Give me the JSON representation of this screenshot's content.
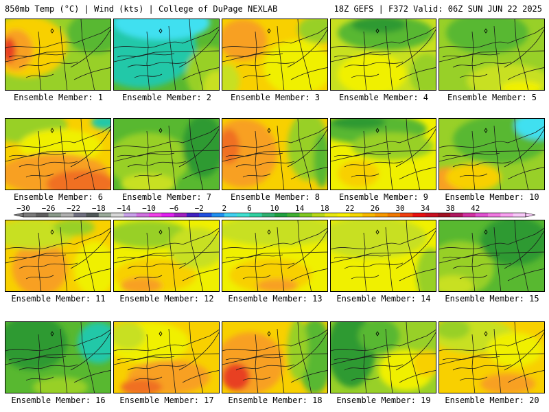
{
  "header": {
    "left": "850mb Temp (°C) | Wind (kts) | College of DuPage NEXLAB",
    "right": "18Z GEFS | F372 Valid: 06Z SUN JUN 22 2025"
  },
  "colors": {
    "cyan": "#40e0f0",
    "teal": "#20c8a8",
    "dark_green": "#2e9a30",
    "green": "#58b830",
    "light_green": "#98d028",
    "yellow_green": "#c8e020",
    "yellow": "#f0f000",
    "gold": "#f8d000",
    "orange": "#f8a020",
    "dark_orange": "#f07020",
    "red_orange": "#e84020"
  },
  "colorbar": {
    "labels": [
      "−30",
      "−26",
      "−22",
      "−18",
      "−14",
      "−10",
      "−6",
      "−2",
      "2",
      "6",
      "10",
      "14",
      "18",
      "22",
      "26",
      "30",
      "34",
      "38",
      "42"
    ],
    "colors": [
      "#7a7a7a",
      "#5e5e5e",
      "#8a9a8a",
      "#b0b0b0",
      "#707080",
      "#505858",
      "#9aaa9a",
      "#d8d8d8",
      "#c8a0e8",
      "#d070e0",
      "#f040e8",
      "#e020f0",
      "#a020c0",
      "#4020c0",
      "#2050e0",
      "#2090f0",
      "#40d0f0",
      "#40e0d0",
      "#30d0a0",
      "#30b070",
      "#20a040",
      "#40b030",
      "#80c820",
      "#b8d818",
      "#e8e810",
      "#f8f000",
      "#f8d800",
      "#f8b800",
      "#f89800",
      "#f07800",
      "#f04010",
      "#e81010",
      "#c81020",
      "#a01020",
      "#b01860",
      "#d030a0",
      "#e050d0",
      "#f078e0",
      "#f8a0f0",
      "#f8c8f8"
    ]
  },
  "panels": [
    {
      "label": "Ensemble Member: 1",
      "base": "#98d028",
      "blobs": [
        {
          "c": "#f8d000",
          "x": 30,
          "y": 40,
          "rx": 60,
          "ry": 45
        },
        {
          "c": "#f8a020",
          "x": 15,
          "y": 45,
          "rx": 25,
          "ry": 30
        },
        {
          "c": "#e84020",
          "x": 5,
          "y": 45,
          "rx": 10,
          "ry": 18
        },
        {
          "c": "#58b830",
          "x": 130,
          "y": 20,
          "rx": 40,
          "ry": 30
        }
      ]
    },
    {
      "label": "Ensemble Member: 2",
      "base": "#58b830",
      "blobs": [
        {
          "c": "#20c8a8",
          "x": 40,
          "y": 40,
          "rx": 80,
          "ry": 60
        },
        {
          "c": "#40e0f0",
          "x": 70,
          "y": 5,
          "rx": 70,
          "ry": 25
        },
        {
          "c": "#98d028",
          "x": 140,
          "y": 80,
          "rx": 35,
          "ry": 40
        },
        {
          "c": "#c8e020",
          "x": 150,
          "y": 100,
          "rx": 20,
          "ry": 25
        }
      ]
    },
    {
      "label": "Ensemble Member: 3",
      "base": "#f8d000",
      "blobs": [
        {
          "c": "#f0f000",
          "x": 110,
          "y": 70,
          "rx": 50,
          "ry": 40
        },
        {
          "c": "#f8a020",
          "x": 30,
          "y": 30,
          "rx": 35,
          "ry": 30
        },
        {
          "c": "#98d028",
          "x": 140,
          "y": 15,
          "rx": 30,
          "ry": 20
        },
        {
          "c": "#c8e020",
          "x": 5,
          "y": 90,
          "rx": 20,
          "ry": 25
        }
      ]
    },
    {
      "label": "Ensemble Member: 4",
      "base": "#c8e020",
      "blobs": [
        {
          "c": "#58b830",
          "x": 80,
          "y": 20,
          "rx": 70,
          "ry": 25
        },
        {
          "c": "#2e9a30",
          "x": 70,
          "y": 8,
          "rx": 40,
          "ry": 12
        },
        {
          "c": "#f0f000",
          "x": 60,
          "y": 80,
          "rx": 50,
          "ry": 30
        },
        {
          "c": "#98d028",
          "x": 140,
          "y": 80,
          "rx": 25,
          "ry": 30
        }
      ]
    },
    {
      "label": "Ensemble Member: 5",
      "base": "#98d028",
      "blobs": [
        {
          "c": "#58b830",
          "x": 70,
          "y": 20,
          "rx": 60,
          "ry": 30
        },
        {
          "c": "#c8e020",
          "x": 100,
          "y": 90,
          "rx": 60,
          "ry": 25
        },
        {
          "c": "#f0f000",
          "x": 120,
          "y": 100,
          "rx": 30,
          "ry": 10
        }
      ]
    },
    {
      "label": "Ensemble Member: 6",
      "base": "#f8d000",
      "blobs": [
        {
          "c": "#98d028",
          "x": 30,
          "y": 10,
          "rx": 60,
          "ry": 25
        },
        {
          "c": "#f0f000",
          "x": 80,
          "y": 40,
          "rx": 60,
          "ry": 25
        },
        {
          "c": "#f8a020",
          "x": 70,
          "y": 80,
          "rx": 80,
          "ry": 30
        },
        {
          "c": "#f07020",
          "x": 110,
          "y": 95,
          "rx": 50,
          "ry": 20
        },
        {
          "c": "#20c8a8",
          "x": 145,
          "y": 5,
          "rx": 20,
          "ry": 10
        }
      ]
    },
    {
      "label": "Ensemble Member: 7",
      "base": "#58b830",
      "blobs": [
        {
          "c": "#98d028",
          "x": 50,
          "y": 60,
          "rx": 60,
          "ry": 40
        },
        {
          "c": "#c8e020",
          "x": 50,
          "y": 95,
          "rx": 40,
          "ry": 15
        },
        {
          "c": "#2e9a30",
          "x": 130,
          "y": 40,
          "rx": 30,
          "ry": 45
        }
      ]
    },
    {
      "label": "Ensemble Member: 8",
      "base": "#f8d000",
      "blobs": [
        {
          "c": "#f8a020",
          "x": 30,
          "y": 50,
          "rx": 50,
          "ry": 50
        },
        {
          "c": "#f07020",
          "x": 10,
          "y": 40,
          "rx": 15,
          "ry": 25
        },
        {
          "c": "#98d028",
          "x": 125,
          "y": 40,
          "rx": 30,
          "ry": 50
        },
        {
          "c": "#58b830",
          "x": 145,
          "y": 60,
          "rx": 12,
          "ry": 40
        }
      ]
    },
    {
      "label": "Ensemble Member: 9",
      "base": "#f0f000",
      "blobs": [
        {
          "c": "#58b830",
          "x": 60,
          "y": 15,
          "rx": 80,
          "ry": 22
        },
        {
          "c": "#2e9a30",
          "x": 40,
          "y": 5,
          "rx": 40,
          "ry": 10
        },
        {
          "c": "#98d028",
          "x": 90,
          "y": 40,
          "rx": 60,
          "ry": 20
        },
        {
          "c": "#f8d000",
          "x": 40,
          "y": 80,
          "rx": 30,
          "ry": 20
        }
      ]
    },
    {
      "label": "Ensemble Member: 10",
      "base": "#98d028",
      "blobs": [
        {
          "c": "#58b830",
          "x": 90,
          "y": 30,
          "rx": 70,
          "ry": 35
        },
        {
          "c": "#40e0f0",
          "x": 145,
          "y": 10,
          "rx": 35,
          "ry": 20
        },
        {
          "c": "#f8a020",
          "x": 15,
          "y": 90,
          "rx": 30,
          "ry": 20
        },
        {
          "c": "#f8d000",
          "x": 50,
          "y": 85,
          "rx": 40,
          "ry": 20
        }
      ]
    },
    {
      "label": "Ensemble Member: 11",
      "base": "#f8d000",
      "blobs": [
        {
          "c": "#f8a020",
          "x": 50,
          "y": 70,
          "rx": 40,
          "ry": 40
        },
        {
          "c": "#c8e020",
          "x": 40,
          "y": 20,
          "rx": 60,
          "ry": 22
        },
        {
          "c": "#98d028",
          "x": 100,
          "y": 10,
          "rx": 30,
          "ry": 12
        },
        {
          "c": "#f0f000",
          "x": 130,
          "y": 70,
          "rx": 30,
          "ry": 40
        }
      ]
    },
    {
      "label": "Ensemble Member: 12",
      "base": "#f0f000",
      "blobs": [
        {
          "c": "#f8d000",
          "x": 60,
          "y": 80,
          "rx": 60,
          "ry": 25
        },
        {
          "c": "#98d028",
          "x": 50,
          "y": 20,
          "rx": 60,
          "ry": 20
        },
        {
          "c": "#c8e020",
          "x": 120,
          "y": 40,
          "rx": 40,
          "ry": 30
        },
        {
          "c": "#f8a020",
          "x": 40,
          "y": 95,
          "rx": 30,
          "ry": 12
        }
      ]
    },
    {
      "label": "Ensemble Member: 13",
      "base": "#f0f000",
      "blobs": [
        {
          "c": "#c8e020",
          "x": 80,
          "y": 15,
          "rx": 90,
          "ry": 22
        },
        {
          "c": "#f8d000",
          "x": 70,
          "y": 80,
          "rx": 60,
          "ry": 25
        },
        {
          "c": "#f8a020",
          "x": 80,
          "y": 95,
          "rx": 30,
          "ry": 10
        }
      ]
    },
    {
      "label": "Ensemble Member: 14",
      "base": "#f0f000",
      "blobs": [
        {
          "c": "#c8e020",
          "x": 60,
          "y": 25,
          "rx": 80,
          "ry": 30
        },
        {
          "c": "#98d028",
          "x": 145,
          "y": 80,
          "rx": 20,
          "ry": 40
        }
      ]
    },
    {
      "label": "Ensemble Member: 15",
      "base": "#58b830",
      "blobs": [
        {
          "c": "#98d028",
          "x": 30,
          "y": 70,
          "rx": 50,
          "ry": 40
        },
        {
          "c": "#c8e020",
          "x": 20,
          "y": 95,
          "rx": 30,
          "ry": 15
        },
        {
          "c": "#2e9a30",
          "x": 110,
          "y": 30,
          "rx": 50,
          "ry": 35
        }
      ]
    },
    {
      "label": "Ensemble Member: 16",
      "base": "#58b830",
      "blobs": [
        {
          "c": "#2e9a30",
          "x": 40,
          "y": 30,
          "rx": 50,
          "ry": 40
        },
        {
          "c": "#20c8a8",
          "x": 135,
          "y": 30,
          "rx": 30,
          "ry": 30
        },
        {
          "c": "#98d028",
          "x": 80,
          "y": 95,
          "rx": 40,
          "ry": 15
        }
      ]
    },
    {
      "label": "Ensemble Member: 17",
      "base": "#f8d000",
      "blobs": [
        {
          "c": "#f0f000",
          "x": 50,
          "y": 30,
          "rx": 60,
          "ry": 30
        },
        {
          "c": "#c8e020",
          "x": 20,
          "y": 20,
          "rx": 25,
          "ry": 20
        },
        {
          "c": "#f8a020",
          "x": 80,
          "y": 80,
          "rx": 60,
          "ry": 25
        },
        {
          "c": "#f07020",
          "x": 40,
          "y": 95,
          "rx": 30,
          "ry": 12
        }
      ]
    },
    {
      "label": "Ensemble Member: 18",
      "base": "#f8d000",
      "blobs": [
        {
          "c": "#f8a020",
          "x": 40,
          "y": 60,
          "rx": 50,
          "ry": 45
        },
        {
          "c": "#e84020",
          "x": 20,
          "y": 80,
          "rx": 20,
          "ry": 20
        },
        {
          "c": "#58b830",
          "x": 135,
          "y": 50,
          "rx": 25,
          "ry": 55
        },
        {
          "c": "#98d028",
          "x": 110,
          "y": 40,
          "rx": 15,
          "ry": 45
        }
      ]
    },
    {
      "label": "Ensemble Member: 19",
      "base": "#98d028",
      "blobs": [
        {
          "c": "#2e9a30",
          "x": 30,
          "y": 40,
          "rx": 35,
          "ry": 55
        },
        {
          "c": "#58b830",
          "x": 70,
          "y": 20,
          "rx": 30,
          "ry": 25
        },
        {
          "c": "#f0f000",
          "x": 110,
          "y": 70,
          "rx": 40,
          "ry": 30
        },
        {
          "c": "#f8d000",
          "x": 140,
          "y": 60,
          "rx": 20,
          "ry": 20
        }
      ]
    },
    {
      "label": "Ensemble Member: 20",
      "base": "#f8d000",
      "blobs": [
        {
          "c": "#c8e020",
          "x": 50,
          "y": 20,
          "rx": 60,
          "ry": 25
        },
        {
          "c": "#98d028",
          "x": 20,
          "y": 10,
          "rx": 25,
          "ry": 15
        },
        {
          "c": "#f0f000",
          "x": 110,
          "y": 40,
          "rx": 40,
          "ry": 25
        },
        {
          "c": "#f8a020",
          "x": 100,
          "y": 90,
          "rx": 40,
          "ry": 15
        }
      ]
    }
  ]
}
